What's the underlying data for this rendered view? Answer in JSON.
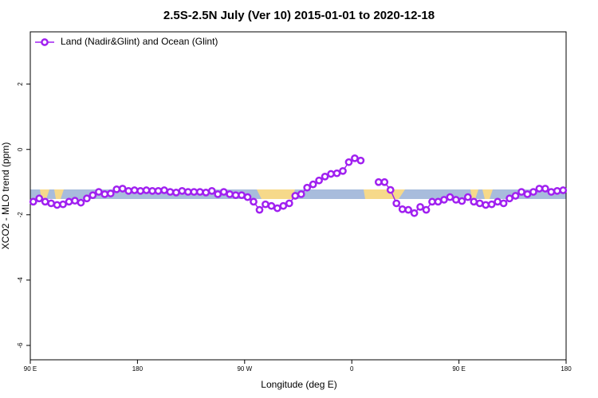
{
  "chart_data": {
    "type": "line",
    "title": "2.5S-2.5N July (Ver 10)   2015-01-01 to 2020-12-18",
    "xlabel": "Longitude (deg E)",
    "ylabel": "XCO2 - MLO trend (ppm)",
    "x": [
      92.5,
      97.5,
      102.5,
      107.5,
      112.5,
      117.5,
      122.5,
      127.5,
      132.5,
      137.5,
      142.5,
      147.5,
      152.5,
      157.5,
      162.5,
      167.5,
      172.5,
      177.5,
      182.5,
      187.5,
      192.5,
      197.5,
      202.5,
      207.5,
      212.5,
      217.5,
      222.5,
      227.5,
      232.5,
      237.5,
      242.5,
      247.5,
      252.5,
      257.5,
      262.5,
      267.5,
      272.5,
      277.5,
      282.5,
      287.5,
      292.5,
      297.5,
      302.5,
      307.5,
      312.5,
      317.5,
      322.5,
      327.5,
      332.5,
      337.5,
      342.5,
      347.5,
      352.5,
      357.5,
      362.5,
      367.5,
      372.5,
      377.5,
      382.5,
      387.5,
      392.5,
      397.5,
      402.5,
      407.5,
      412.5,
      417.5,
      422.5,
      427.5,
      432.5,
      437.5,
      442.5,
      447.5,
      452.5,
      457.5,
      462.5,
      467.5,
      472.5,
      477.5,
      482.5,
      487.5,
      492.5,
      497.5,
      502.5,
      507.5,
      512.5,
      517.5,
      522.5,
      527.5,
      532.5,
      537.5
    ],
    "series": [
      {
        "name": "Land (Nadir&Glint) and Ocean (Glint)",
        "color": "#a020f0",
        "values": [
          -1.6,
          -1.5,
          -1.6,
          -1.65,
          -1.7,
          -1.68,
          -1.6,
          -1.57,
          -1.63,
          -1.5,
          -1.4,
          -1.3,
          -1.37,
          -1.35,
          -1.22,
          -1.2,
          -1.27,
          -1.25,
          -1.27,
          -1.25,
          -1.27,
          -1.27,
          -1.25,
          -1.3,
          -1.32,
          -1.27,
          -1.3,
          -1.3,
          -1.3,
          -1.32,
          -1.27,
          -1.37,
          -1.3,
          -1.37,
          -1.4,
          -1.4,
          -1.46,
          -1.6,
          -1.85,
          -1.68,
          -1.73,
          -1.8,
          -1.73,
          -1.65,
          -1.42,
          -1.37,
          -1.17,
          -1.07,
          -0.95,
          -0.83,
          -0.75,
          -0.73,
          -0.66,
          -0.39,
          -0.27,
          -0.34,
          null,
          null,
          -1.0,
          -1.0,
          -1.24,
          -1.65,
          -1.83,
          -1.85,
          -1.95,
          -1.76,
          -1.85,
          -1.6,
          -1.6,
          -1.54,
          -1.46,
          -1.54,
          -1.58,
          -1.46,
          -1.6,
          -1.65,
          -1.7,
          -1.68,
          -1.6,
          -1.65,
          -1.5,
          -1.42,
          -1.3,
          -1.37,
          -1.3,
          -1.2,
          -1.2,
          -1.3,
          -1.27,
          -1.25
        ]
      }
    ],
    "xlim": [
      90,
      540
    ],
    "xticks": [
      {
        "value": 90,
        "label": "90 E"
      },
      180,
      {
        "value": 270,
        "label": "90 W"
      },
      {
        "value": 360,
        "label": "0"
      },
      {
        "value": 450,
        "label": "90 E"
      },
      {
        "value": 540,
        "label": "180"
      }
    ],
    "ylim": [
      -6.44,
      3.6
    ],
    "yticks": [
      2,
      0,
      -2,
      -4,
      -6
    ],
    "legend": "top-left"
  }
}
